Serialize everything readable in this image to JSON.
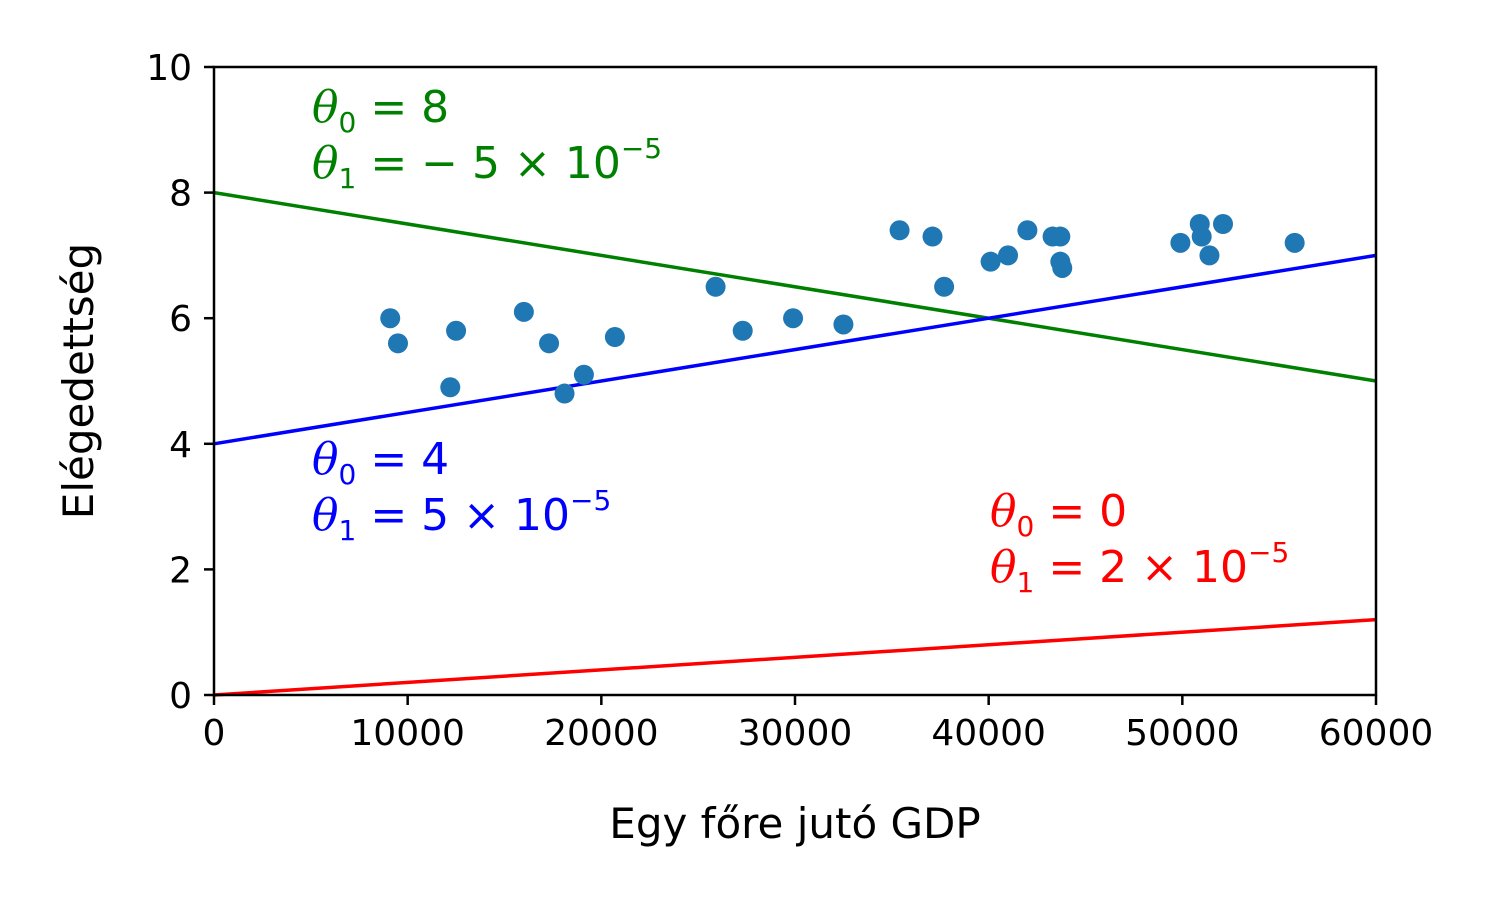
{
  "chart_data": {
    "type": "scatter",
    "xlabel": "Egy főre jutó GDP",
    "ylabel": "Elégedettség",
    "xlim": [
      0,
      60000
    ],
    "ylim": [
      0,
      10
    ],
    "x_ticks": [
      "0",
      "10000",
      "20000",
      "30000",
      "40000",
      "50000",
      "60000"
    ],
    "y_ticks": [
      "0",
      "2",
      "4",
      "6",
      "8",
      "10"
    ],
    "grid": false,
    "colors": {
      "points": "#1f77b4",
      "green_line": "#008000",
      "blue_line": "#0000ff",
      "red_line": "#ff0000"
    },
    "points": {
      "x": [
        9100,
        9500,
        12200,
        12500,
        16000,
        17300,
        18100,
        19100,
        20700,
        25900,
        27300,
        29900,
        32500,
        35400,
        37100,
        37700,
        40100,
        41000,
        42000,
        43300,
        43700,
        43700,
        43800,
        49900,
        50900,
        51000,
        51400,
        52100,
        55800
      ],
      "y": [
        6.0,
        5.6,
        4.9,
        5.8,
        6.1,
        5.6,
        4.8,
        5.1,
        5.7,
        6.5,
        5.8,
        6.0,
        5.9,
        7.4,
        7.3,
        6.5,
        6.9,
        7.0,
        7.4,
        7.3,
        7.3,
        6.9,
        6.8,
        7.2,
        7.5,
        7.3,
        7.0,
        7.5,
        7.2
      ]
    },
    "lines": [
      {
        "color_key": "green_line",
        "theta0": 8,
        "theta1": -5e-05,
        "label_line1": {
          "sym": "θ",
          "sub": "0",
          "rest": " = 8"
        },
        "label_line2": {
          "sym": "θ",
          "sub": "1",
          "rest": " = − 5 × 10",
          "sup": "−5"
        }
      },
      {
        "color_key": "blue_line",
        "theta0": 4,
        "theta1": 5e-05,
        "label_line1": {
          "sym": "θ",
          "sub": "0",
          "rest": " = 4"
        },
        "label_line2": {
          "sym": "θ",
          "sub": "1",
          "rest": " = 5 × 10",
          "sup": "−5"
        }
      },
      {
        "color_key": "red_line",
        "theta0": 0,
        "theta1": 2e-05,
        "label_line1": {
          "sym": "θ",
          "sub": "0",
          "rest": " = 0"
        },
        "label_line2": {
          "sym": "θ",
          "sub": "1",
          "rest": " = 2 × 10",
          "sup": "−5"
        }
      }
    ]
  }
}
